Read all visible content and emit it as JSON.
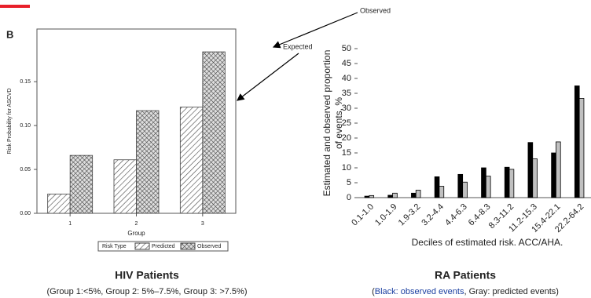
{
  "chart_data": [
    {
      "type": "bar",
      "panel_label": "B",
      "ylabel": "Risk Probability for ASCVD",
      "xlabel": "Group",
      "categories": [
        "1",
        "2",
        "3"
      ],
      "series": [
        {
          "name": "Predicted",
          "color": "#444444",
          "pattern": "diagonal",
          "values": [
            0.022,
            0.061,
            0.121
          ]
        },
        {
          "name": "Observed",
          "color": "#444444",
          "pattern": "crosshatch",
          "values": [
            0.066,
            0.117,
            0.184
          ]
        }
      ],
      "ylim": [
        0,
        0.21
      ],
      "yticks": [
        {
          "value": 0,
          "label": "0.00"
        },
        0.05,
        {
          "value": 0.1,
          "label": "0.10"
        },
        0.15
      ],
      "legend": "bottom",
      "legend_title": "Risk Type",
      "annotations": [
        {
          "text": "Observed",
          "color": "#1a3fa0"
        },
        {
          "text": "Expected",
          "color": "#e8202a"
        }
      ],
      "caption": "HIV Patients",
      "subcaption": [
        "(Group 1:<5%, Group 2: 5%–7.5%, Group 3: >7.5%)"
      ]
    },
    {
      "type": "bar",
      "ylabel": [
        "Estimated and observed proportion",
        "of events, %"
      ],
      "xlabel": "Deciles of estimated risk. ACC/AHA.",
      "categories": [
        "0.1-1.0",
        "1.0-1.9",
        "1.9-3.2",
        "3.2-4.4",
        "4.4-6.3",
        "6.4-8.3",
        "8.3-11.2",
        "11.2-15.3",
        "15.4-22.1",
        "22.2-64.2"
      ],
      "series": [
        {
          "color": "#000000",
          "values": [
            0.5,
            0.8,
            1.5,
            7,
            7.8,
            10,
            10.2,
            18.5,
            15,
            37.5
          ]
        },
        {
          "color": "#c0c0c0",
          "values": [
            0.7,
            1.5,
            2.5,
            3.8,
            5.2,
            7.2,
            9.5,
            13,
            18.7,
            33.3
          ]
        }
      ],
      "ylim": [
        0,
        50
      ],
      "yticks": [
        0,
        5,
        10,
        15,
        20,
        25,
        30,
        35,
        40,
        45,
        50
      ],
      "caption": "RA Patients",
      "subcaption": [
        "(",
        "Black: observed events",
        ", Gray: predicted events)"
      ]
    }
  ]
}
